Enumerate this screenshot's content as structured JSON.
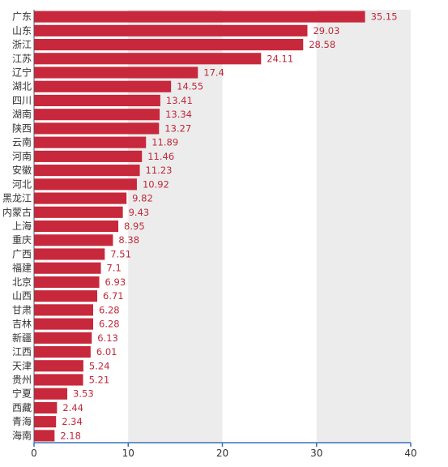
{
  "chart_data": {
    "type": "bar",
    "orientation": "horizontal",
    "title": "",
    "xlabel": "",
    "ylabel": "",
    "xlim": [
      0,
      40
    ],
    "xticks": [
      0,
      10,
      20,
      30,
      40
    ],
    "grid": "alternating vertical bands",
    "bar_color": "#c8283b",
    "band_color": "#ececec",
    "axis_color": "#3b73b9",
    "label_color": "#c0293a",
    "categories": [
      "广东",
      "山东",
      "浙江",
      "江苏",
      "辽宁",
      "湖北",
      "四川",
      "湖南",
      "陕西",
      "云南",
      "河南",
      "安徽",
      "河北",
      "黑龙江",
      "内蒙古",
      "上海",
      "重庆",
      "广西",
      "福建",
      "北京",
      "山西",
      "甘肃",
      "吉林",
      "新疆",
      "江西",
      "天津",
      "贵州",
      "宁夏",
      "西藏",
      "青海",
      "海南"
    ],
    "values": [
      35.15,
      29.03,
      28.58,
      24.11,
      17.4,
      14.55,
      13.41,
      13.34,
      13.27,
      11.89,
      11.46,
      11.23,
      10.92,
      9.82,
      9.43,
      8.95,
      8.38,
      7.51,
      7.1,
      6.93,
      6.71,
      6.28,
      6.28,
      6.13,
      6.01,
      5.24,
      5.21,
      3.53,
      2.44,
      2.34,
      2.18
    ],
    "value_labels": [
      "35.15",
      "29.03",
      "28.58",
      "24.11",
      "17.4",
      "14.55",
      "13.41",
      "13.34",
      "13.27",
      "11.89",
      "11.46",
      "11.23",
      "10.92",
      "9.82",
      "9.43",
      "8.95",
      "8.38",
      "7.51",
      "7.1",
      "6.93",
      "6.71",
      "6.28",
      "6.28",
      "6.13",
      "6.01",
      "5.24",
      "5.21",
      "3.53",
      "2.44",
      "2.34",
      "2.18"
    ],
    "tick_labels": [
      "0",
      "10",
      "20",
      "30",
      "40"
    ]
  }
}
